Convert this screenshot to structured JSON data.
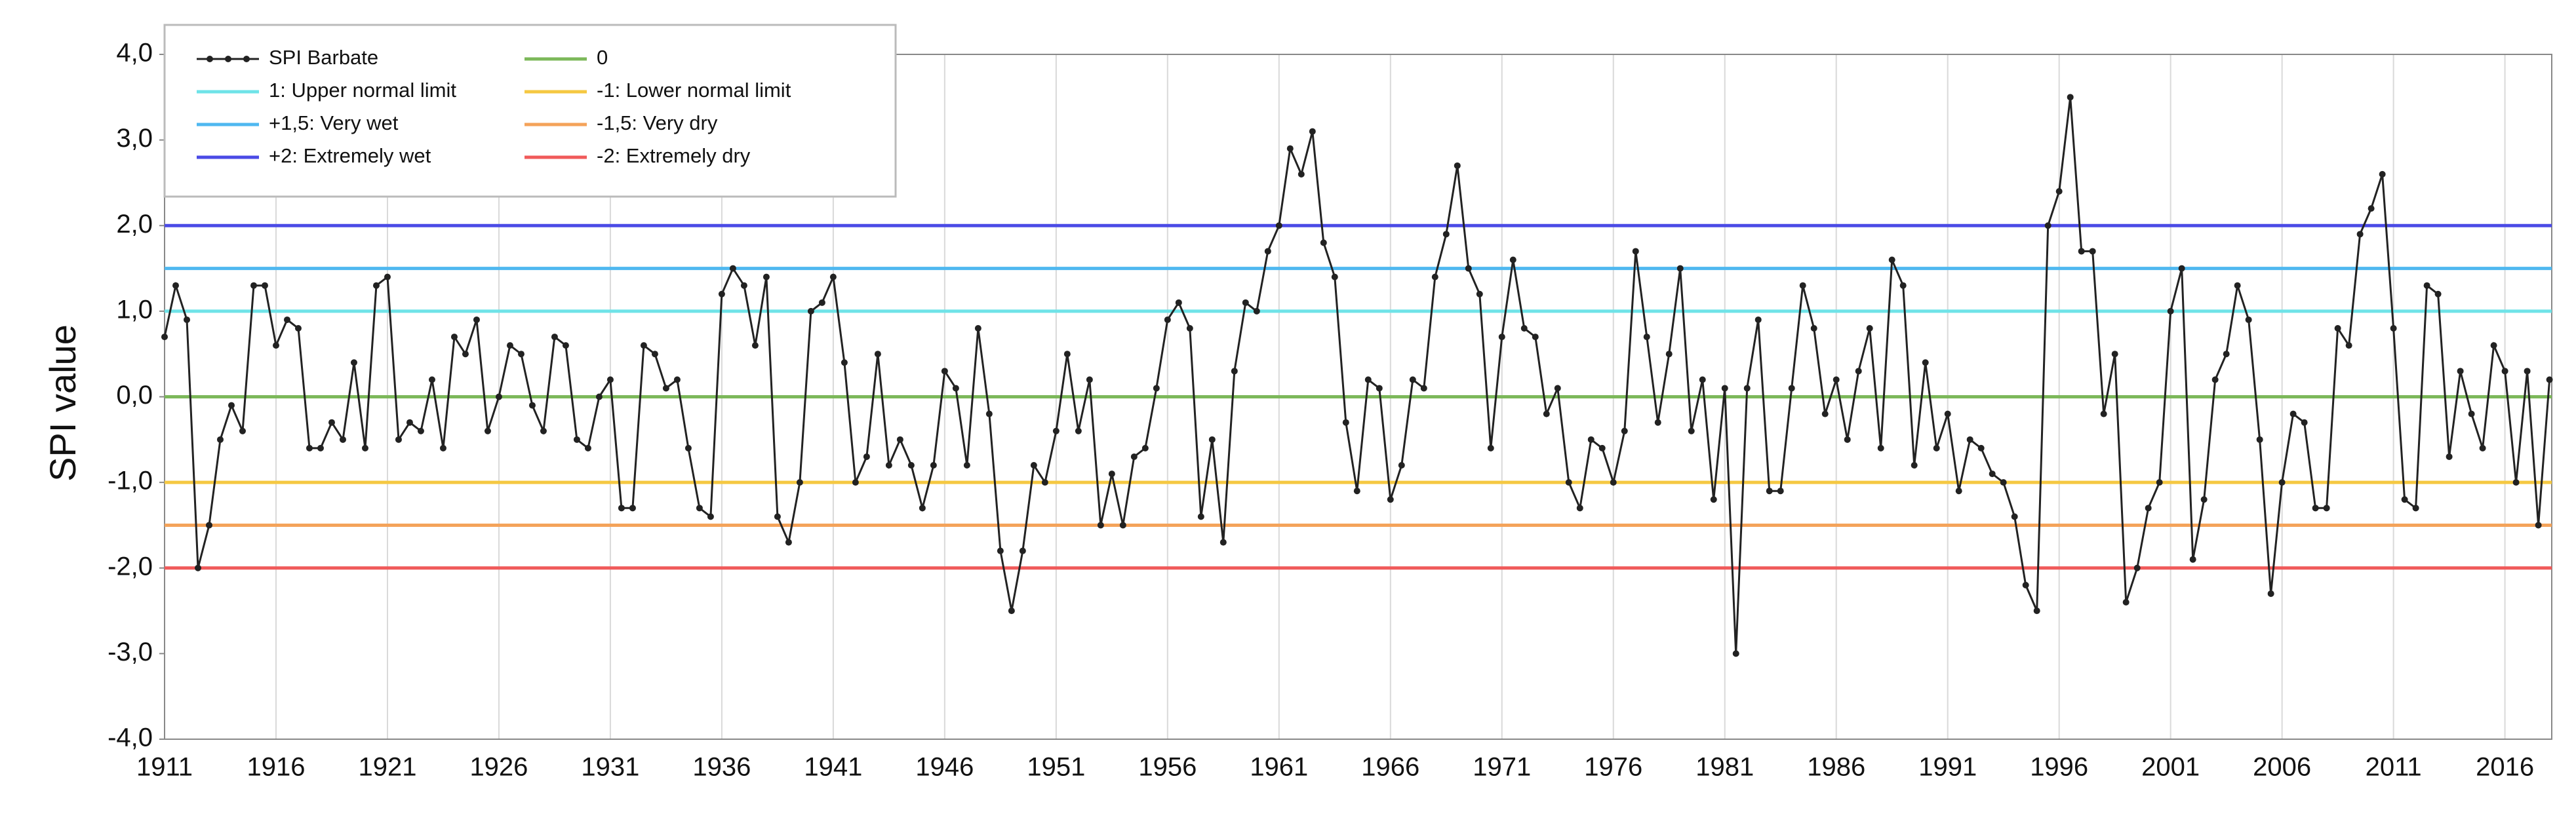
{
  "chart_data": {
    "type": "line",
    "y_label": "SPI value",
    "xlim": [
      1911,
      2018.1
    ],
    "xticks": [
      1911,
      1916,
      1921,
      1926,
      1931,
      1936,
      1941,
      1946,
      1951,
      1956,
      1961,
      1966,
      1971,
      1976,
      1981,
      1986,
      1991,
      1996,
      2001,
      2006,
      2011,
      2016
    ],
    "ylim": [
      -4,
      4
    ],
    "yticks": [
      {
        "value": 4,
        "label": "4,0"
      },
      {
        "value": 3,
        "label": "3,0"
      },
      {
        "value": 2,
        "label": "2,0"
      },
      {
        "value": 1,
        "label": "1,0"
      },
      {
        "value": 0,
        "label": "0,0"
      },
      {
        "value": -1,
        "label": "-1,0"
      },
      {
        "value": -2,
        "label": "-2,0"
      },
      {
        "value": -3,
        "label": "-3,0"
      },
      {
        "value": -4,
        "label": "-4,0"
      }
    ],
    "grid": true,
    "x": [
      1911,
      1911.5,
      1912,
      1912.5,
      1913,
      1913.5,
      1914,
      1914.5,
      1915,
      1915.5,
      1916,
      1916.5,
      1917,
      1917.5,
      1918,
      1918.5,
      1919,
      1919.5,
      1920,
      1920.5,
      1921,
      1921.5,
      1922,
      1922.5,
      1923,
      1923.5,
      1924,
      1924.5,
      1925,
      1925.5,
      1926,
      1926.5,
      1927,
      1927.5,
      1928,
      1928.5,
      1929,
      1929.5,
      1930,
      1930.5,
      1931,
      1931.5,
      1932,
      1932.5,
      1933,
      1933.5,
      1934,
      1934.5,
      1935,
      1935.5,
      1936,
      1936.5,
      1937,
      1937.5,
      1938,
      1938.5,
      1939,
      1939.5,
      1940,
      1940.5,
      1941,
      1941.5,
      1942,
      1942.5,
      1943,
      1943.5,
      1944,
      1944.5,
      1945,
      1945.5,
      1946,
      1946.5,
      1947,
      1947.5,
      1948,
      1948.5,
      1949,
      1949.5,
      1950,
      1950.5,
      1951,
      1951.5,
      1952,
      1952.5,
      1953,
      1953.5,
      1954,
      1954.5,
      1955,
      1955.5,
      1956,
      1956.5,
      1957,
      1957.5,
      1958,
      1958.5,
      1959,
      1959.5,
      1960,
      1960.5,
      1961,
      1961.5,
      1962,
      1962.5,
      1963,
      1963.5,
      1964,
      1964.5,
      1965,
      1965.5,
      1966,
      1966.5,
      1967,
      1967.5,
      1968,
      1968.5,
      1969,
      1969.5,
      1970,
      1970.5,
      1971,
      1971.5,
      1972,
      1972.5,
      1973,
      1973.5,
      1974,
      1974.5,
      1975,
      1975.5,
      1976,
      1976.5,
      1977,
      1977.5,
      1978,
      1978.5,
      1979,
      1979.5,
      1980,
      1980.5,
      1981,
      1981.5,
      1982,
      1982.5,
      1983,
      1983.5,
      1984,
      1984.5,
      1985,
      1985.5,
      1986,
      1986.5,
      1987,
      1987.5,
      1988,
      1988.5,
      1989,
      1989.5,
      1990,
      1990.5,
      1991,
      1991.5,
      1992,
      1992.5,
      1993,
      1993.5,
      1994,
      1994.5,
      1995,
      1995.5,
      1996,
      1996.5,
      1997,
      1997.5,
      1998,
      1998.5,
      1999,
      1999.5,
      2000,
      2000.5,
      2001,
      2001.5,
      2002,
      2002.5,
      2003,
      2003.5,
      2004,
      2004.5,
      2005,
      2005.5,
      2006,
      2006.5,
      2007,
      2007.5,
      2008,
      2008.5,
      2009,
      2009.5,
      2010,
      2010.5,
      2011,
      2011.5,
      2012,
      2012.5,
      2013,
      2013.5,
      2014,
      2014.5,
      2015,
      2015.5,
      2016,
      2016.5,
      2017,
      2017.5,
      2018
    ],
    "series": [
      {
        "name": "SPI Barbate",
        "color": "#222222",
        "values": [
          0.7,
          1.3,
          0.9,
          -2.0,
          -1.5,
          -0.5,
          -0.1,
          -0.4,
          1.3,
          1.3,
          0.6,
          0.9,
          0.8,
          -0.6,
          -0.6,
          -0.3,
          -0.5,
          0.4,
          -0.6,
          1.3,
          1.4,
          -0.5,
          -0.3,
          -0.4,
          0.2,
          -0.6,
          0.7,
          0.5,
          0.9,
          -0.4,
          0.0,
          0.6,
          0.5,
          -0.1,
          -0.4,
          0.7,
          0.6,
          -0.5,
          -0.6,
          0.0,
          0.2,
          -1.3,
          -1.3,
          0.6,
          0.5,
          0.1,
          0.2,
          -0.6,
          -1.3,
          -1.4,
          1.2,
          1.5,
          1.3,
          0.6,
          1.4,
          -1.4,
          -1.7,
          -1.0,
          1.0,
          1.1,
          1.4,
          0.4,
          -1.0,
          -0.7,
          0.5,
          -0.8,
          -0.5,
          -0.8,
          -1.3,
          -0.8,
          0.3,
          0.1,
          -0.8,
          0.8,
          -0.2,
          -1.8,
          -2.5,
          -1.8,
          -0.8,
          -1.0,
          -0.4,
          0.5,
          -0.4,
          0.2,
          -1.5,
          -0.9,
          -1.5,
          -0.7,
          -0.6,
          0.1,
          0.9,
          1.1,
          0.8,
          -1.4,
          -0.5,
          -1.7,
          0.3,
          1.1,
          1.0,
          1.7,
          2.0,
          2.9,
          2.6,
          3.1,
          1.8,
          1.4,
          -0.3,
          -1.1,
          0.2,
          0.1,
          -1.2,
          -0.8,
          0.2,
          0.1,
          1.4,
          1.9,
          2.7,
          1.5,
          1.2,
          -0.6,
          0.7,
          1.6,
          0.8,
          0.7,
          -0.2,
          0.1,
          -1.0,
          -1.3,
          -0.5,
          -0.6,
          -1.0,
          -0.4,
          1.7,
          0.7,
          -0.3,
          0.5,
          1.5,
          -0.4,
          0.2,
          -1.2,
          0.1,
          -3.0,
          0.1,
          0.9,
          -1.1,
          -1.1,
          0.1,
          1.3,
          0.8,
          -0.2,
          0.2,
          -0.5,
          0.3,
          0.8,
          -0.6,
          1.6,
          1.3,
          -0.8,
          0.4,
          -0.6,
          -0.2,
          -1.1,
          -0.5,
          -0.6,
          -0.9,
          -1.0,
          -1.4,
          -2.2,
          -2.5,
          2.0,
          2.4,
          3.5,
          1.7,
          1.7,
          -0.2,
          0.5,
          -2.4,
          -2.0,
          -1.3,
          -1.0,
          1.0,
          1.5,
          -1.9,
          -1.2,
          0.2,
          0.5,
          1.3,
          0.9,
          -0.5,
          -2.3,
          -1.0,
          -0.2,
          -0.3,
          -1.3,
          -1.3,
          0.8,
          0.6,
          1.9,
          2.2,
          2.6,
          0.8,
          -1.2,
          -1.3,
          1.3,
          1.2,
          -0.7,
          0.3,
          -0.2,
          -0.6,
          0.6,
          0.3,
          -1.0,
          0.3,
          -1.5,
          0.2
        ]
      }
    ],
    "reference_lines": [
      {
        "name": "0",
        "value": 0,
        "color": "#7cb85a"
      },
      {
        "name": "1: Upper normal limit",
        "value": 1,
        "color": "#6fe3e8"
      },
      {
        "name": "-1: Lower normal limit",
        "value": -1,
        "color": "#f5c842"
      },
      {
        "name": "+1,5: Very wet",
        "value": 1.5,
        "color": "#4fb8f0"
      },
      {
        "name": "-1,5: Very dry",
        "value": -1.5,
        "color": "#f4a35a"
      },
      {
        "name": "+2: Extremely wet",
        "value": 2,
        "color": "#4b4be6"
      },
      {
        "name": "-2: Extremely dry",
        "value": -2,
        "color": "#f05a5a"
      }
    ]
  }
}
